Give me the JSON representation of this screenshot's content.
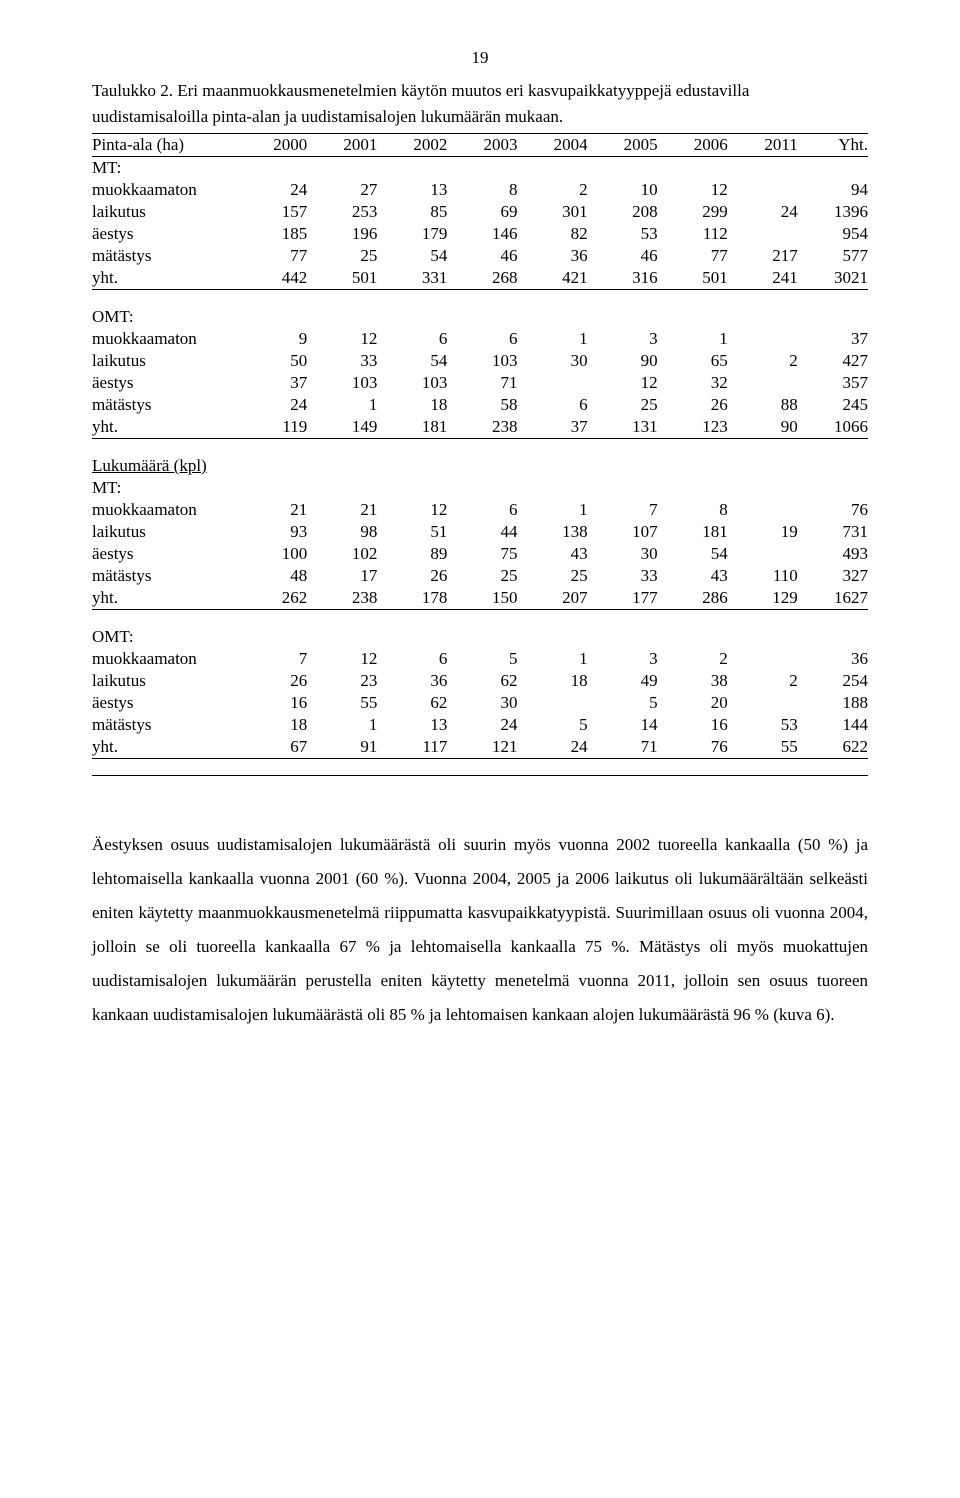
{
  "page_number": "19",
  "caption": "Taulukko 2. Eri maanmuokkausmenetelmien käytön muutos eri kasvupaikkatyyppejä edustavilla uudistamisaloilla pinta-alan ja uudistamisalojen lukumäärän mukaan.",
  "columns": [
    "2000",
    "2001",
    "2002",
    "2003",
    "2004",
    "2005",
    "2006",
    "2011",
    "Yht."
  ],
  "first_col_header": "Pinta-ala (ha)",
  "sections": [
    {
      "heading": "MT:",
      "rows": [
        {
          "label": "muokkaamaton",
          "cells": [
            "24",
            "27",
            "13",
            "8",
            "2",
            "10",
            "12",
            "",
            "94"
          ]
        },
        {
          "label": "laikutus",
          "cells": [
            "157",
            "253",
            "85",
            "69",
            "301",
            "208",
            "299",
            "24",
            "1396"
          ]
        },
        {
          "label": "äestys",
          "cells": [
            "185",
            "196",
            "179",
            "146",
            "82",
            "53",
            "112",
            "",
            "954"
          ]
        },
        {
          "label": "mätästys",
          "cells": [
            "77",
            "25",
            "54",
            "46",
            "36",
            "46",
            "77",
            "217",
            "577"
          ]
        },
        {
          "label": "yht.",
          "cells": [
            "442",
            "501",
            "331",
            "268",
            "421",
            "316",
            "501",
            "241",
            "3021"
          ]
        }
      ]
    },
    {
      "heading": "OMT:",
      "rows": [
        {
          "label": "muokkaamaton",
          "cells": [
            "9",
            "12",
            "6",
            "6",
            "1",
            "3",
            "1",
            "",
            "37"
          ]
        },
        {
          "label": "laikutus",
          "cells": [
            "50",
            "33",
            "54",
            "103",
            "30",
            "90",
            "65",
            "2",
            "427"
          ]
        },
        {
          "label": "äestys",
          "cells": [
            "37",
            "103",
            "103",
            "71",
            "",
            "12",
            "32",
            "",
            "357"
          ]
        },
        {
          "label": "mätästys",
          "cells": [
            "24",
            "1",
            "18",
            "58",
            "6",
            "25",
            "26",
            "88",
            "245"
          ]
        },
        {
          "label": "yht.",
          "cells": [
            "119",
            "149",
            "181",
            "238",
            "37",
            "131",
            "123",
            "90",
            "1066"
          ]
        }
      ]
    },
    {
      "heading_underline": "Lukumäärä (kpl)",
      "heading": "MT:",
      "rows": [
        {
          "label": "muokkaamaton",
          "cells": [
            "21",
            "21",
            "12",
            "6",
            "1",
            "7",
            "8",
            "",
            "76"
          ]
        },
        {
          "label": "laikutus",
          "cells": [
            "93",
            "98",
            "51",
            "44",
            "138",
            "107",
            "181",
            "19",
            "731"
          ]
        },
        {
          "label": "äestys",
          "cells": [
            "100",
            "102",
            "89",
            "75",
            "43",
            "30",
            "54",
            "",
            "493"
          ]
        },
        {
          "label": "mätästys",
          "cells": [
            "48",
            "17",
            "26",
            "25",
            "25",
            "33",
            "43",
            "110",
            "327"
          ]
        },
        {
          "label": "yht.",
          "cells": [
            "262",
            "238",
            "178",
            "150",
            "207",
            "177",
            "286",
            "129",
            "1627"
          ]
        }
      ]
    },
    {
      "heading": "OMT:",
      "rows": [
        {
          "label": "muokkaamaton",
          "cells": [
            "7",
            "12",
            "6",
            "5",
            "1",
            "3",
            "2",
            "",
            "36"
          ]
        },
        {
          "label": "laikutus",
          "cells": [
            "26",
            "23",
            "36",
            "62",
            "18",
            "49",
            "38",
            "2",
            "254"
          ]
        },
        {
          "label": "äestys",
          "cells": [
            "16",
            "55",
            "62",
            "30",
            "",
            "5",
            "20",
            "",
            "188"
          ]
        },
        {
          "label": "mätästys",
          "cells": [
            "18",
            "1",
            "13",
            "24",
            "5",
            "14",
            "16",
            "53",
            "144"
          ]
        },
        {
          "label": "yht.",
          "cells": [
            "67",
            "91",
            "117",
            "121",
            "24",
            "71",
            "76",
            "55",
            "622"
          ]
        }
      ]
    }
  ],
  "body_text": "Äestyksen osuus uudistamisalojen lukumäärästä oli suurin myös vuonna 2002 tuoreella kankaalla (50 %) ja lehtomaisella kankaalla vuonna 2001 (60 %). Vuonna 2004, 2005 ja 2006 laikutus oli lukumäärältään selkeästi eniten käytetty maanmuokkausmenetelmä riippumatta kasvupaikkatyypistä. Suurimillaan osuus oli vuonna 2004, jolloin se oli tuoreella kankaalla 67 % ja lehtomaisella kankaalla 75 %. Mätästys oli myös muokattujen uudistamisalojen lukumäärän perustella eniten käytetty menetelmä vuonna 2011, jolloin sen osuus tuoreen kankaan uudistamisalojen lukumäärästä oli 85 % ja lehtomaisen kankaan alojen lukumäärästä 96 % (kuva 6)."
}
